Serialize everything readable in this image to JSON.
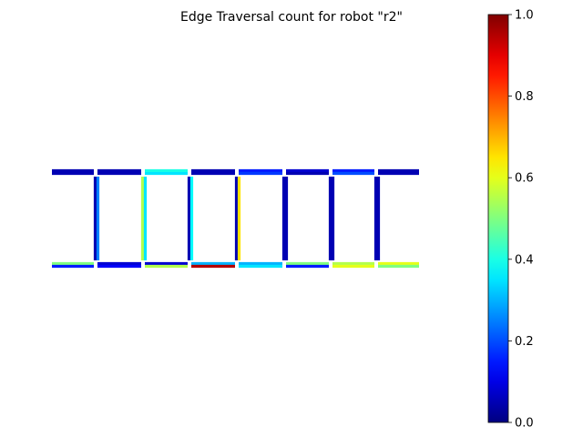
{
  "chart_data": {
    "type": "heatmap",
    "title": "Edge Traversal count for robot \"r2\"",
    "colormap": "jet",
    "colorbar": {
      "range": [
        0,
        1
      ],
      "ticks": [
        "0.0",
        "0.2",
        "0.4",
        "0.6",
        "0.8",
        "1.0"
      ],
      "tick_values": [
        0.0,
        0.2,
        0.4,
        0.6,
        0.8,
        1.0
      ],
      "placement": "right"
    },
    "layout": "ladder: 8 cells wide, 2 rows of horizontal edges joined by vertical edges",
    "edges": {
      "top_primary": [
        0.05,
        0.05,
        0.4,
        0.05,
        0.15,
        0.08,
        0.15,
        0.05
      ],
      "top_secondary": [
        0.05,
        0.05,
        0.35,
        0.05,
        0.18,
        0.05,
        0.2,
        0.05
      ],
      "bottom_primary": [
        0.5,
        0.08,
        0.08,
        0.3,
        0.3,
        0.5,
        0.55,
        0.6
      ],
      "bottom_secondary": [
        0.15,
        0.12,
        0.55,
        0.95,
        0.35,
        0.15,
        0.6,
        0.5
      ],
      "vertical_right_of_left_node": [
        0.25,
        0.35,
        0.38,
        0.65,
        0.05,
        0.05,
        0.05
      ],
      "vertical_left_of_right_node": [
        0.05,
        0.55,
        0.05,
        0.05,
        0.05,
        0.05,
        0.05
      ]
    }
  }
}
